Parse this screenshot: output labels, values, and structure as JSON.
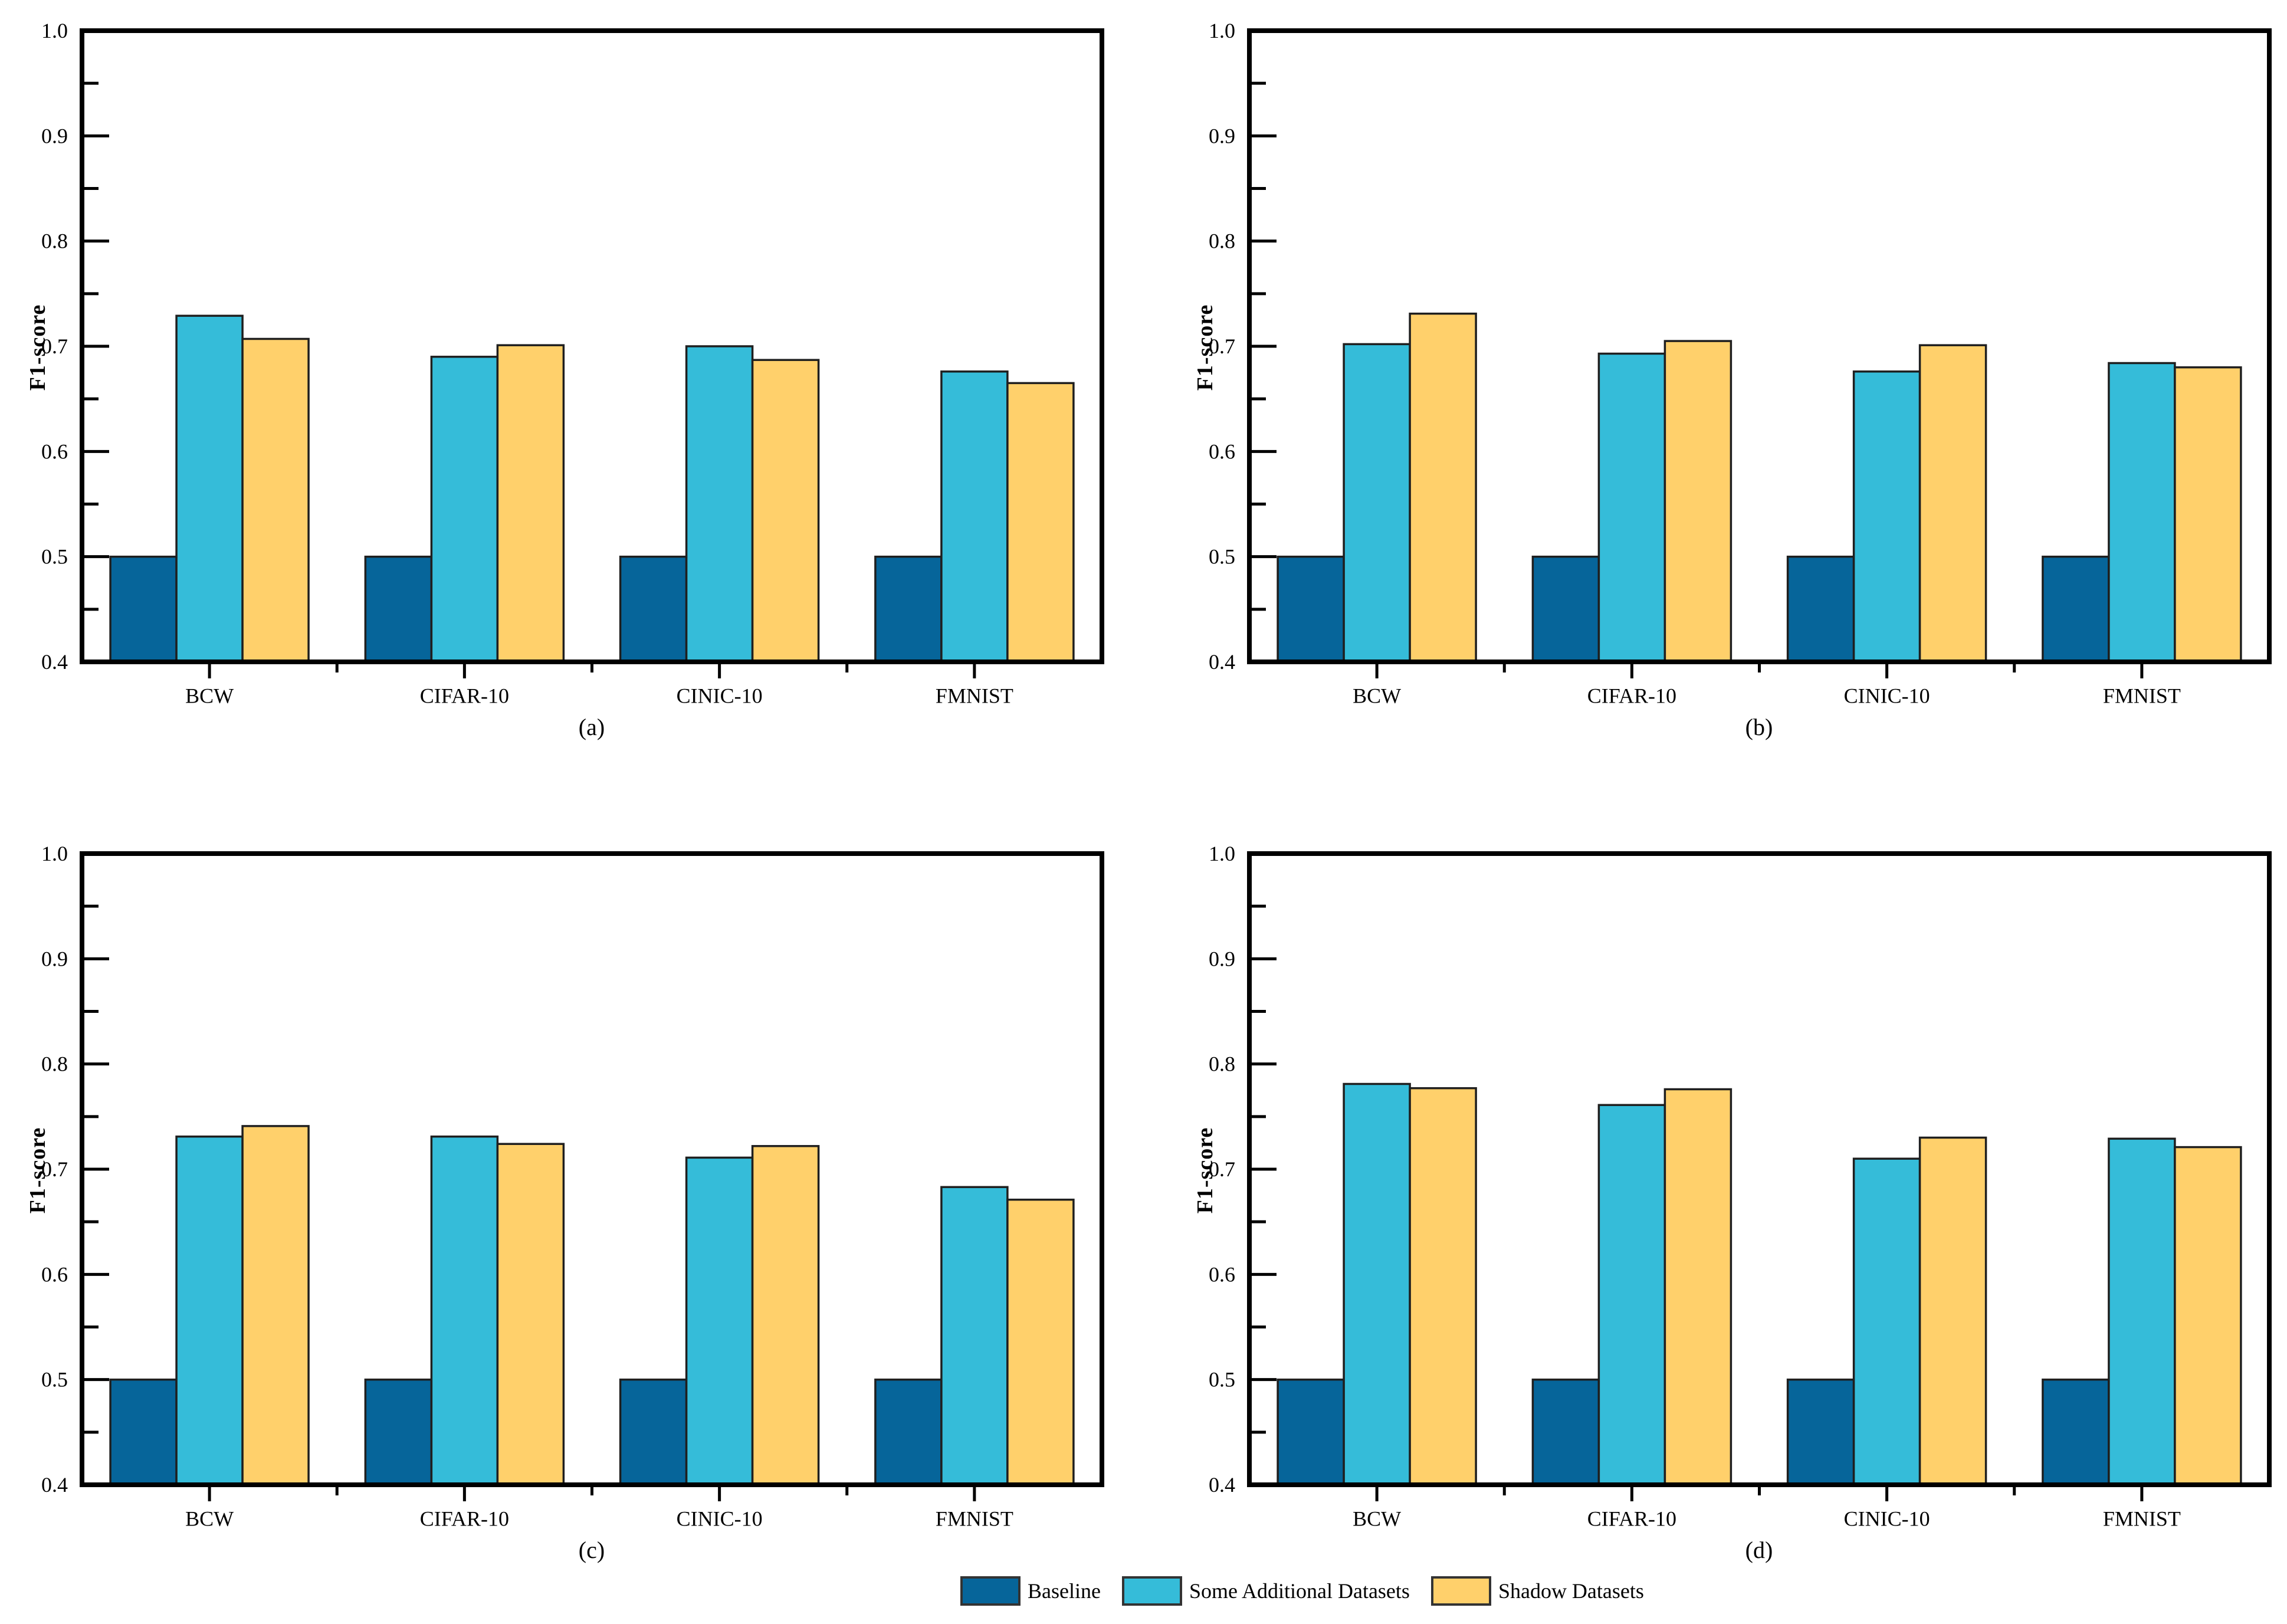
{
  "page": {
    "background": "#ffffff"
  },
  "legend": {
    "position": "bottom",
    "items": [
      {
        "label": "Baseline",
        "color": "#06659A"
      },
      {
        "label": "Some Additional Datasets",
        "color": "#35BCD9"
      },
      {
        "label": "Shadow Datasets",
        "color": "#FFD06B"
      }
    ]
  },
  "style": {
    "bar_border_color": "#1f1f1f",
    "axis_color": "#000000"
  },
  "chart_data": [
    {
      "type": "bar",
      "caption": "(a)",
      "ylabel": "F1-score",
      "ylim": [
        0.4,
        1.0
      ],
      "yticks": [
        0.4,
        0.5,
        0.6,
        0.7,
        0.8,
        0.9,
        1.0
      ],
      "grid": false,
      "categories": [
        "BCW",
        "CIFAR-10",
        "CINIC-10",
        "FMNIST"
      ],
      "series": [
        {
          "name": "Baseline",
          "color": "#06659A",
          "values": [
            0.5,
            0.5,
            0.5,
            0.5
          ]
        },
        {
          "name": "Some Additional Datasets",
          "color": "#35BCD9",
          "values": [
            0.729,
            0.69,
            0.7,
            0.676
          ]
        },
        {
          "name": "Shadow Datasets",
          "color": "#FFD06B",
          "values": [
            0.707,
            0.701,
            0.687,
            0.665
          ]
        }
      ]
    },
    {
      "type": "bar",
      "caption": "(b)",
      "ylabel": "F1-score",
      "ylim": [
        0.4,
        1.0
      ],
      "yticks": [
        0.4,
        0.5,
        0.6,
        0.7,
        0.8,
        0.9,
        1.0
      ],
      "grid": false,
      "categories": [
        "BCW",
        "CIFAR-10",
        "CINIC-10",
        "FMNIST"
      ],
      "series": [
        {
          "name": "Baseline",
          "color": "#06659A",
          "values": [
            0.5,
            0.5,
            0.5,
            0.5
          ]
        },
        {
          "name": "Some Additional Datasets",
          "color": "#35BCD9",
          "values": [
            0.702,
            0.693,
            0.676,
            0.684
          ]
        },
        {
          "name": "Shadow Datasets",
          "color": "#FFD06B",
          "values": [
            0.731,
            0.705,
            0.701,
            0.68
          ]
        }
      ]
    },
    {
      "type": "bar",
      "caption": "(c)",
      "ylabel": "F1-score",
      "ylim": [
        0.4,
        1.0
      ],
      "yticks": [
        0.4,
        0.5,
        0.6,
        0.7,
        0.8,
        0.9,
        1.0
      ],
      "grid": false,
      "categories": [
        "BCW",
        "CIFAR-10",
        "CINIC-10",
        "FMNIST"
      ],
      "series": [
        {
          "name": "Baseline",
          "color": "#06659A",
          "values": [
            0.5,
            0.5,
            0.5,
            0.5
          ]
        },
        {
          "name": "Some Additional Datasets",
          "color": "#35BCD9",
          "values": [
            0.731,
            0.731,
            0.711,
            0.683
          ]
        },
        {
          "name": "Shadow Datasets",
          "color": "#FFD06B",
          "values": [
            0.741,
            0.724,
            0.722,
            0.671
          ]
        }
      ]
    },
    {
      "type": "bar",
      "caption": "(d)",
      "ylabel": "F1-score",
      "ylim": [
        0.4,
        1.0
      ],
      "yticks": [
        0.4,
        0.5,
        0.6,
        0.7,
        0.8,
        0.9,
        1.0
      ],
      "grid": false,
      "categories": [
        "BCW",
        "CIFAR-10",
        "CINIC-10",
        "FMNIST"
      ],
      "series": [
        {
          "name": "Baseline",
          "color": "#06659A",
          "values": [
            0.5,
            0.5,
            0.5,
            0.5
          ]
        },
        {
          "name": "Some Additional Datasets",
          "color": "#35BCD9",
          "values": [
            0.781,
            0.761,
            0.71,
            0.729
          ]
        },
        {
          "name": "Shadow Datasets",
          "color": "#FFD06B",
          "values": [
            0.777,
            0.776,
            0.73,
            0.721
          ]
        }
      ]
    }
  ]
}
